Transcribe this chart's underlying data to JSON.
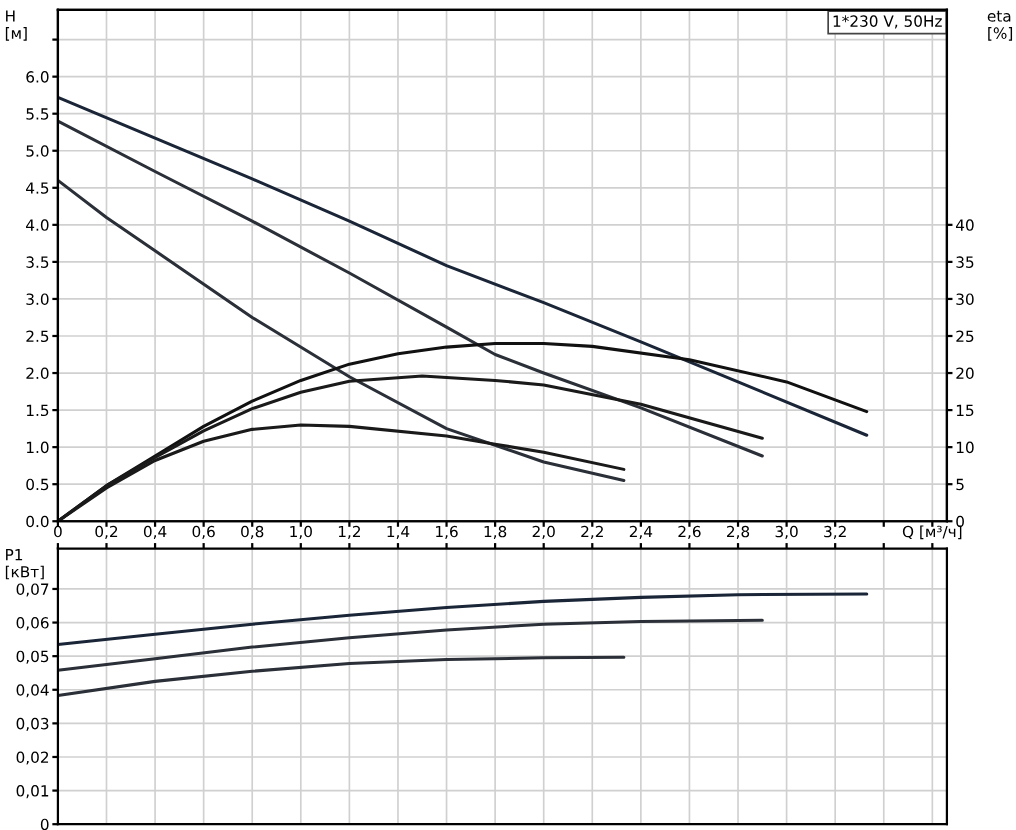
{
  "chart_data": [
    {
      "type": "line",
      "ylabel": "H\n[м]",
      "y2label": "eta\n[%]",
      "annotations": [
        "1*230 V, 50Hz"
      ],
      "xlim": [
        0,
        3.66
      ],
      "xticks": [
        {
          "value": 0,
          "label": null
        },
        {
          "value": 0.2,
          "label": null
        },
        {
          "value": 0.4,
          "label": null
        },
        {
          "value": 0.6,
          "label": null
        },
        {
          "value": 0.8,
          "label": null
        },
        {
          "value": 1.0,
          "label": null
        },
        {
          "value": 1.2,
          "label": null
        },
        {
          "value": 1.4,
          "label": null
        },
        {
          "value": 1.6,
          "label": null
        },
        {
          "value": 1.8,
          "label": null
        },
        {
          "value": 2.0,
          "label": null
        },
        {
          "value": 2.2,
          "label": null
        },
        {
          "value": 2.4,
          "label": null
        },
        {
          "value": 2.6,
          "label": null
        },
        {
          "value": 2.8,
          "label": null
        },
        {
          "value": 3.0,
          "label": null
        },
        {
          "value": 3.2,
          "label": null
        },
        {
          "value": 3.4,
          "label": null
        },
        {
          "value": 3.6,
          "label": null
        }
      ],
      "ylim": [
        0,
        6.9
      ],
      "yticks": [
        {
          "value": 0,
          "label": "0.0"
        },
        {
          "value": 0.5,
          "label": "0.5"
        },
        {
          "value": 1,
          "label": "1.0"
        },
        {
          "value": 1.5,
          "label": "1.5"
        },
        {
          "value": 2,
          "label": "2.0"
        },
        {
          "value": 2.5,
          "label": "2.5"
        },
        {
          "value": 3,
          "label": "3.0"
        },
        {
          "value": 3.5,
          "label": "3.5"
        },
        {
          "value": 4,
          "label": "4.0"
        },
        {
          "value": 4.5,
          "label": "4.5"
        },
        {
          "value": 5,
          "label": "5.0"
        },
        {
          "value": 5.5,
          "label": "5.5"
        },
        {
          "value": 6,
          "label": "6.0"
        },
        {
          "value": 6.5,
          "label": null
        }
      ],
      "y2lim": [
        0,
        69
      ],
      "y2ticks": [
        0,
        5,
        10,
        15,
        20,
        25,
        30,
        35,
        40
      ],
      "grid": true,
      "tick_labels": "y",
      "series": [
        {
          "color": "#1a2638",
          "x": [
            0,
            0.4,
            0.8,
            1.2,
            1.6,
            2.0,
            2.4,
            2.8,
            3.33
          ],
          "values": [
            5.72,
            5.17,
            4.62,
            4.05,
            3.45,
            2.95,
            2.42,
            1.88,
            1.16
          ]
        },
        {
          "color": "#2a2f38",
          "x": [
            0,
            0.4,
            0.8,
            1.2,
            1.6,
            1.8,
            2.0,
            2.4,
            2.9
          ],
          "values": [
            5.4,
            4.72,
            4.05,
            3.35,
            2.62,
            2.25,
            2.0,
            1.53,
            0.88
          ]
        },
        {
          "color": "#2a2f38",
          "x": [
            0,
            0.2,
            0.4,
            0.8,
            1.2,
            1.6,
            2.0,
            2.33
          ],
          "values": [
            4.6,
            4.1,
            3.65,
            2.75,
            1.95,
            1.25,
            0.8,
            0.55
          ]
        },
        {
          "color": "#111111",
          "axis": "y2",
          "x": [
            0,
            0.2,
            0.4,
            0.6,
            0.8,
            1.0,
            1.2,
            1.4,
            1.6,
            1.8,
            2.0,
            2.2,
            2.6,
            3.0,
            3.33
          ],
          "values": [
            0,
            4.8,
            8.8,
            12.8,
            16.2,
            19.0,
            21.2,
            22.6,
            23.5,
            24.0,
            24.0,
            23.6,
            21.8,
            18.8,
            14.8
          ]
        },
        {
          "color": "#1a1a1a",
          "axis": "y2",
          "x": [
            0,
            0.2,
            0.4,
            0.6,
            0.8,
            1.0,
            1.2,
            1.5,
            1.8,
            2.0,
            2.4,
            2.9
          ],
          "values": [
            0,
            4.8,
            8.6,
            12.2,
            15.2,
            17.4,
            18.9,
            19.6,
            19.0,
            18.4,
            15.8,
            11.2
          ]
        },
        {
          "color": "#1a1a1a",
          "axis": "y2",
          "x": [
            0,
            0.2,
            0.4,
            0.6,
            0.8,
            1.0,
            1.2,
            1.6,
            1.8,
            2.0,
            2.33
          ],
          "values": [
            0,
            4.5,
            8.2,
            10.8,
            12.4,
            13.0,
            12.8,
            11.5,
            10.4,
            9.3,
            7.0
          ]
        }
      ]
    },
    {
      "type": "line",
      "ylabel": "P1\n[кВт]",
      "xlim": [
        0,
        3.66
      ],
      "xticks": [
        0,
        {
          "value": 0.2,
          "label": "0,2"
        },
        {
          "value": 0.4,
          "label": "0,4"
        },
        {
          "value": 0.6,
          "label": "0,6"
        },
        {
          "value": 0.8,
          "label": "0,8"
        },
        {
          "value": 1.0,
          "label": "1,0"
        },
        {
          "value": 1.2,
          "label": "1,2"
        },
        {
          "value": 1.4,
          "label": "1,4"
        },
        {
          "value": 1.6,
          "label": "1,6"
        },
        {
          "value": 1.8,
          "label": "1,8"
        },
        {
          "value": 2.0,
          "label": "2,0"
        },
        {
          "value": 2.2,
          "label": "2,2"
        },
        {
          "value": 2.4,
          "label": "2,4"
        },
        {
          "value": 2.6,
          "label": "2,6"
        },
        {
          "value": 2.8,
          "label": "2,8"
        },
        {
          "value": 3.0,
          "label": "3,0"
        },
        {
          "value": 3.2,
          "label": "3,2"
        },
        {
          "value": 3.4,
          "label": null
        },
        {
          "value": 3.6,
          "label": "Q [м³/ч]"
        }
      ],
      "ylim": [
        0,
        0.082
      ],
      "yticks": [
        0,
        {
          "value": 0.01,
          "label": "0,01"
        },
        {
          "value": 0.02,
          "label": "0,02"
        },
        {
          "value": 0.03,
          "label": "0,03"
        },
        {
          "value": 0.04,
          "label": "0,04"
        },
        {
          "value": 0.05,
          "label": "0,05"
        },
        {
          "value": 0.06,
          "label": "0,06"
        },
        {
          "value": 0.07,
          "label": "0,07"
        }
      ],
      "grid": true,
      "series": [
        {
          "color": "#1a2638",
          "x": [
            0,
            0.4,
            0.8,
            1.2,
            1.6,
            2.0,
            2.4,
            2.8,
            3.33
          ],
          "values": [
            0.0535,
            0.0565,
            0.0595,
            0.0622,
            0.0645,
            0.0663,
            0.0675,
            0.0683,
            0.0685
          ]
        },
        {
          "color": "#2a2f38",
          "x": [
            0,
            0.4,
            0.8,
            1.2,
            1.6,
            2.0,
            2.4,
            2.9
          ],
          "values": [
            0.0458,
            0.0492,
            0.0527,
            0.0555,
            0.0578,
            0.0595,
            0.0603,
            0.0607
          ]
        },
        {
          "color": "#2a2f38",
          "x": [
            0,
            0.4,
            0.8,
            1.2,
            1.6,
            2.0,
            2.33
          ],
          "values": [
            0.0383,
            0.0425,
            0.0455,
            0.0478,
            0.049,
            0.0495,
            0.0497
          ]
        }
      ]
    }
  ]
}
